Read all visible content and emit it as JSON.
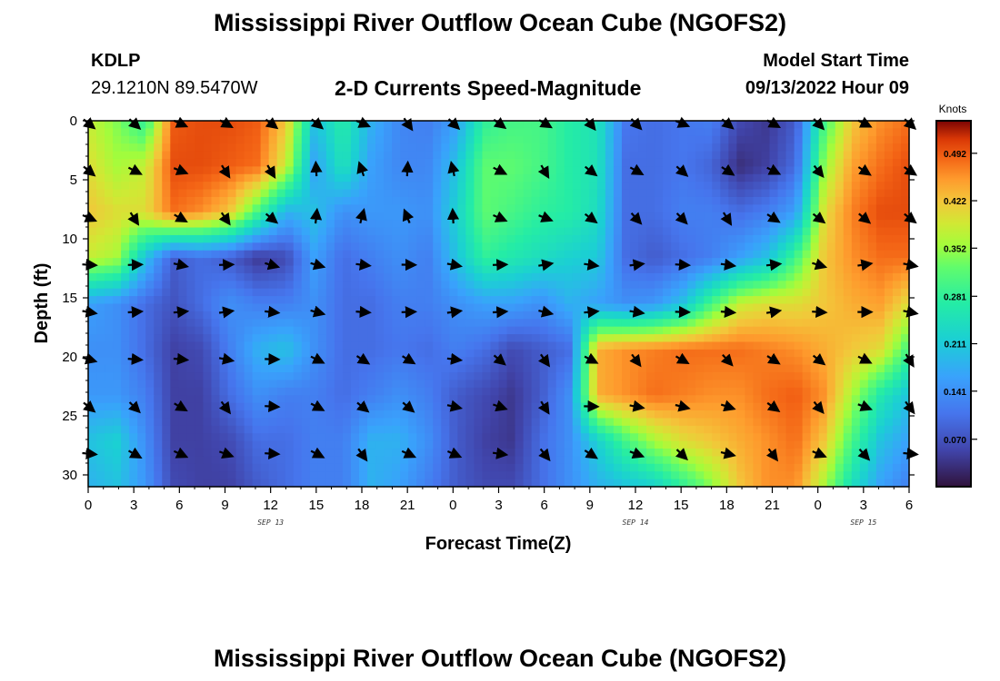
{
  "header": {
    "title": "Mississippi River Outflow Ocean Cube (NGOFS2)",
    "station": "KDLP",
    "coordinates": "29.1210N  89.5470W",
    "subtitle": "2-D Currents Speed-Magnitude",
    "model_start_label": "Model Start Time",
    "model_start_value": "09/13/2022 Hour 09"
  },
  "footer": {
    "title": "Mississippi River Outflow Ocean Cube (NGOFS2)"
  },
  "chart_data": {
    "type": "heatmap",
    "xlabel": "Forecast Time(Z)",
    "ylabel": "Depth (ft)",
    "x_tick_labels": [
      "0",
      "3",
      "6",
      "9",
      "12",
      "15",
      "18",
      "21",
      "0",
      "3",
      "6",
      "9",
      "12",
      "15",
      "18",
      "21",
      "0",
      "3",
      "6"
    ],
    "date_labels": [
      {
        "text": "SEP 13",
        "hour_index": 12
      },
      {
        "text": "SEP 14",
        "hour_index": 36
      },
      {
        "text": "SEP 15",
        "hour_index": 51
      }
    ],
    "x_range_hours": [
      0,
      54
    ],
    "y_tick_labels": [
      "0",
      "5",
      "10",
      "15",
      "20",
      "25",
      "30"
    ],
    "ylim": [
      0,
      31
    ],
    "y_inverted": true,
    "colorbar": {
      "unit": "Knots",
      "tick_labels": [
        "0.492",
        "0.422",
        "0.352",
        "0.281",
        "0.211",
        "0.141",
        "0.070"
      ],
      "range": [
        0.0,
        0.54
      ]
    },
    "speed_field_knots": [
      [
        0.38,
        0.34,
        0.28,
        0.49,
        0.5,
        0.5,
        0.49,
        0.42,
        0.2,
        0.27,
        0.18,
        0.13,
        0.12,
        0.16,
        0.28,
        0.3,
        0.3,
        0.27,
        0.25,
        0.11,
        0.1,
        0.11,
        0.12,
        0.06,
        0.04,
        0.08,
        0.3,
        0.42,
        0.46,
        0.48
      ],
      [
        0.4,
        0.36,
        0.38,
        0.5,
        0.5,
        0.49,
        0.48,
        0.38,
        0.16,
        0.25,
        0.16,
        0.13,
        0.13,
        0.2,
        0.32,
        0.32,
        0.3,
        0.27,
        0.25,
        0.1,
        0.1,
        0.11,
        0.09,
        0.03,
        0.05,
        0.1,
        0.35,
        0.45,
        0.48,
        0.5
      ],
      [
        0.42,
        0.4,
        0.4,
        0.48,
        0.46,
        0.42,
        0.3,
        0.18,
        0.2,
        0.14,
        0.15,
        0.15,
        0.14,
        0.22,
        0.32,
        0.3,
        0.28,
        0.27,
        0.24,
        0.1,
        0.1,
        0.12,
        0.12,
        0.1,
        0.12,
        0.16,
        0.4,
        0.47,
        0.5,
        0.5
      ],
      [
        0.38,
        0.36,
        0.2,
        0.08,
        0.1,
        0.08,
        0.04,
        0.06,
        0.16,
        0.1,
        0.12,
        0.14,
        0.12,
        0.2,
        0.28,
        0.26,
        0.24,
        0.22,
        0.21,
        0.1,
        0.08,
        0.1,
        0.12,
        0.16,
        0.2,
        0.3,
        0.42,
        0.46,
        0.48,
        0.48
      ],
      [
        0.16,
        0.14,
        0.1,
        0.07,
        0.1,
        0.14,
        0.12,
        0.12,
        0.14,
        0.1,
        0.1,
        0.12,
        0.12,
        0.14,
        0.16,
        0.16,
        0.14,
        0.18,
        0.16,
        0.14,
        0.15,
        0.2,
        0.3,
        0.38,
        0.4,
        0.4,
        0.42,
        0.44,
        0.45,
        0.4
      ],
      [
        0.14,
        0.14,
        0.1,
        0.05,
        0.06,
        0.12,
        0.18,
        0.2,
        0.14,
        0.1,
        0.1,
        0.11,
        0.1,
        0.12,
        0.1,
        0.06,
        0.08,
        0.1,
        0.44,
        0.46,
        0.47,
        0.48,
        0.48,
        0.48,
        0.47,
        0.46,
        0.44,
        0.42,
        0.4,
        0.3
      ],
      [
        0.15,
        0.15,
        0.12,
        0.05,
        0.05,
        0.1,
        0.14,
        0.12,
        0.12,
        0.1,
        0.12,
        0.14,
        0.12,
        0.08,
        0.06,
        0.04,
        0.08,
        0.14,
        0.44,
        0.46,
        0.48,
        0.47,
        0.46,
        0.46,
        0.48,
        0.49,
        0.46,
        0.36,
        0.26,
        0.2
      ],
      [
        0.2,
        0.22,
        0.14,
        0.05,
        0.05,
        0.06,
        0.1,
        0.1,
        0.12,
        0.12,
        0.18,
        0.18,
        0.14,
        0.08,
        0.05,
        0.04,
        0.1,
        0.14,
        0.22,
        0.3,
        0.36,
        0.4,
        0.42,
        0.44,
        0.46,
        0.48,
        0.42,
        0.3,
        0.2,
        0.16
      ],
      [
        0.18,
        0.2,
        0.15,
        0.06,
        0.05,
        0.05,
        0.08,
        0.1,
        0.12,
        0.12,
        0.18,
        0.16,
        0.12,
        0.08,
        0.06,
        0.06,
        0.1,
        0.14,
        0.18,
        0.2,
        0.22,
        0.28,
        0.34,
        0.42,
        0.46,
        0.46,
        0.36,
        0.24,
        0.16,
        0.12
      ]
    ],
    "vectors_note": "current direction arrows overlaid on a regular grid"
  }
}
